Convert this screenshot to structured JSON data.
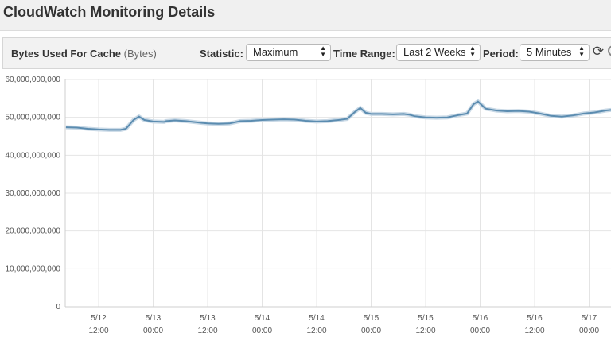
{
  "page": {
    "title": "CloudWatch Monitoring Details"
  },
  "toolbar": {
    "metric_name": "Bytes Used For Cache",
    "metric_unit": "(Bytes)",
    "statistic_label": "Statistic:",
    "statistic_value": "Maximum",
    "time_range_label": "Time Range:",
    "time_range_value": "Last 2 Weeks",
    "period_label": "Period:",
    "period_value": "5 Minutes",
    "refresh_icon": "refresh-icon"
  },
  "colors": {
    "line": "#5b8cb0",
    "line_shadow": "#c9d9e6",
    "grid": "#e4e4e4"
  },
  "chart_data": {
    "type": "line",
    "ylim": [
      0,
      60000000000
    ],
    "y_ticks": [
      "60,000,000,000",
      "50,000,000,000",
      "40,000,000,000",
      "30,000,000,000",
      "20,000,000,000",
      "10,000,000,000",
      "0"
    ],
    "x_ticks": [
      {
        "date": "5/12",
        "time": "12:00"
      },
      {
        "date": "5/13",
        "time": "00:00"
      },
      {
        "date": "5/13",
        "time": "12:00"
      },
      {
        "date": "5/14",
        "time": "00:00"
      },
      {
        "date": "5/14",
        "time": "12:00"
      },
      {
        "date": "5/15",
        "time": "00:00"
      },
      {
        "date": "5/15",
        "time": "12:00"
      },
      {
        "date": "5/16",
        "time": "00:00"
      },
      {
        "date": "5/16",
        "time": "12:00"
      },
      {
        "date": "5/17",
        "time": "00:00"
      }
    ],
    "series": [
      {
        "values": [
          [
            0.0,
            47300000000
          ],
          [
            0.1,
            47500000000
          ],
          [
            0.2,
            47400000000
          ],
          [
            0.3,
            47300000000
          ],
          [
            0.4,
            47000000000
          ],
          [
            0.5,
            46800000000
          ],
          [
            0.6,
            46700000000
          ],
          [
            0.7,
            46700000000
          ],
          [
            0.75,
            47000000000
          ],
          [
            0.82,
            49300000000
          ],
          [
            0.87,
            50200000000
          ],
          [
            0.92,
            49300000000
          ],
          [
            1.0,
            48900000000
          ],
          [
            1.1,
            48800000000
          ],
          [
            1.12,
            49000000000
          ],
          [
            1.2,
            49200000000
          ],
          [
            1.3,
            49000000000
          ],
          [
            1.4,
            48700000000
          ],
          [
            1.5,
            48400000000
          ],
          [
            1.6,
            48300000000
          ],
          [
            1.7,
            48400000000
          ],
          [
            1.8,
            49000000000
          ],
          [
            1.9,
            49100000000
          ],
          [
            2.0,
            49300000000
          ],
          [
            2.1,
            49400000000
          ],
          [
            2.2,
            49500000000
          ],
          [
            2.3,
            49400000000
          ],
          [
            2.4,
            49100000000
          ],
          [
            2.5,
            48900000000
          ],
          [
            2.6,
            49000000000
          ],
          [
            2.7,
            49300000000
          ],
          [
            2.78,
            49600000000
          ],
          [
            2.85,
            51400000000
          ],
          [
            2.9,
            52500000000
          ],
          [
            2.95,
            51200000000
          ],
          [
            3.0,
            50900000000
          ],
          [
            3.1,
            50900000000
          ],
          [
            3.2,
            50800000000
          ],
          [
            3.3,
            50900000000
          ],
          [
            3.35,
            50700000000
          ],
          [
            3.4,
            50300000000
          ],
          [
            3.5,
            50000000000
          ],
          [
            3.6,
            49900000000
          ],
          [
            3.7,
            50000000000
          ],
          [
            3.8,
            50600000000
          ],
          [
            3.88,
            51000000000
          ],
          [
            3.94,
            53500000000
          ],
          [
            3.98,
            54200000000
          ],
          [
            4.05,
            52300000000
          ],
          [
            4.15,
            51800000000
          ],
          [
            4.25,
            51600000000
          ],
          [
            4.35,
            51700000000
          ],
          [
            4.45,
            51500000000
          ],
          [
            4.55,
            51000000000
          ],
          [
            4.65,
            50400000000
          ],
          [
            4.75,
            50200000000
          ],
          [
            4.85,
            50500000000
          ],
          [
            4.95,
            51000000000
          ],
          [
            5.05,
            51300000000
          ],
          [
            5.15,
            51800000000
          ],
          [
            5.22,
            52000000000
          ],
          [
            5.3,
            51800000000
          ]
        ]
      }
    ]
  }
}
